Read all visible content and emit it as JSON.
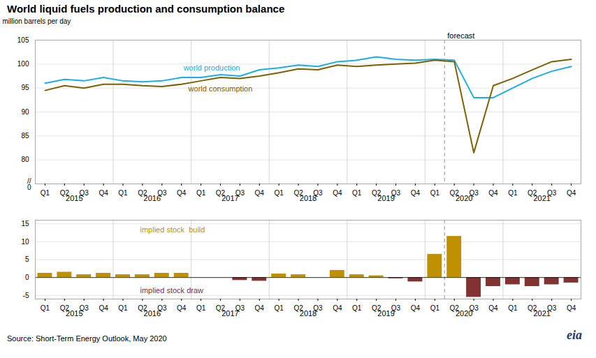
{
  "chart_data": [
    {
      "type": "line",
      "title": "World liquid fuels production and consumption balance",
      "ylabel": "million barrels per day",
      "categories": [
        "Q1",
        "Q2",
        "Q3",
        "Q4",
        "Q1",
        "Q2",
        "Q3",
        "Q4",
        "Q1",
        "Q2",
        "Q3",
        "Q4",
        "Q1",
        "Q2",
        "Q3",
        "Q4",
        "Q1",
        "Q2",
        "Q3",
        "Q4",
        "Q1",
        "Q2",
        "Q3",
        "Q4",
        "Q1",
        "Q2",
        "Q3",
        "Q4"
      ],
      "category_groups": [
        "2015",
        "2015",
        "2015",
        "2015",
        "2016",
        "2016",
        "2016",
        "2016",
        "2017",
        "2017",
        "2017",
        "2017",
        "2018",
        "2018",
        "2018",
        "2018",
        "2019",
        "2019",
        "2019",
        "2019",
        "2020",
        "2020",
        "2020",
        "2020",
        "2021",
        "2021",
        "2021",
        "2021"
      ],
      "series": [
        {
          "name": "world production",
          "color": "#1aadec",
          "values": [
            96.0,
            96.8,
            96.5,
            97.2,
            96.5,
            96.3,
            96.5,
            97.2,
            97.2,
            97.8,
            97.5,
            98.8,
            99.2,
            99.8,
            99.5,
            100.5,
            100.8,
            101.5,
            101.0,
            100.8,
            101.0,
            100.8,
            93.0,
            93.0,
            95.0,
            97.0,
            98.5,
            99.5
          ]
        },
        {
          "name": "world consumption",
          "color": "#7f6000",
          "values": [
            94.5,
            95.5,
            95.0,
            95.8,
            95.8,
            95.5,
            95.3,
            95.8,
            96.5,
            97.2,
            97.0,
            97.5,
            98.2,
            99.0,
            98.8,
            99.8,
            99.5,
            99.8,
            100.0,
            100.2,
            100.8,
            100.5,
            81.5,
            95.5,
            97.0,
            98.8,
            100.5,
            101.0
          ]
        }
      ],
      "ylim": [
        75,
        105
      ],
      "yticks": [
        80,
        85,
        90,
        95,
        100,
        105
      ],
      "grid": true,
      "annotations": [
        {
          "text": "forecast",
          "x": 20.5
        },
        {
          "text": "//"
        },
        {
          "text": "0"
        }
      ]
    },
    {
      "type": "bar",
      "categories": [
        "Q1",
        "Q2",
        "Q3",
        "Q4",
        "Q1",
        "Q2",
        "Q3",
        "Q4",
        "Q1",
        "Q2",
        "Q3",
        "Q4",
        "Q1",
        "Q2",
        "Q3",
        "Q4",
        "Q1",
        "Q2",
        "Q3",
        "Q4",
        "Q1",
        "Q2",
        "Q3",
        "Q4",
        "Q1",
        "Q2",
        "Q3",
        "Q4"
      ],
      "category_groups": [
        "2015",
        "2015",
        "2015",
        "2015",
        "2016",
        "2016",
        "2016",
        "2016",
        "2017",
        "2017",
        "2017",
        "2017",
        "2018",
        "2018",
        "2018",
        "2018",
        "2019",
        "2019",
        "2019",
        "2019",
        "2020",
        "2020",
        "2020",
        "2020",
        "2021",
        "2021",
        "2021",
        "2021"
      ],
      "values": [
        1.2,
        1.5,
        0.8,
        1.2,
        0.8,
        0.8,
        1.2,
        1.2,
        0.0,
        0.0,
        -0.8,
        -1.0,
        1.0,
        0.8,
        0.0,
        2.0,
        0.8,
        0.5,
        -0.3,
        -1.2,
        6.5,
        11.5,
        -5.5,
        -2.5,
        -2.0,
        -2.5,
        -2.0,
        -1.5
      ],
      "colors": [
        "#bf9000",
        "#bf9000",
        "#bf9000",
        "#bf9000",
        "#bf9000",
        "#bf9000",
        "#bf9000",
        "#bf9000",
        "#bf9000",
        "#bf9000",
        "#833232",
        "#833232",
        "#bf9000",
        "#bf9000",
        "#bf9000",
        "#bf9000",
        "#bf9000",
        "#bf9000",
        "#833232",
        "#833232",
        "#bf9000",
        "#bf9000",
        "#833232",
        "#833232",
        "#833232",
        "#833232",
        "#833232",
        "#833232"
      ],
      "ylim": [
        -6,
        16
      ],
      "yticks": [
        -5,
        0,
        5,
        10,
        15
      ],
      "grid": true,
      "annotations": [
        {
          "text": "implied stock  build",
          "color": "#bf9000"
        },
        {
          "text": "implied stock draw",
          "color": "#833232"
        }
      ],
      "source": "Source: Short-Term Energy Outlook, May 2020",
      "credit": {
        "text": "eia",
        "color": "#1f3864"
      }
    }
  ]
}
